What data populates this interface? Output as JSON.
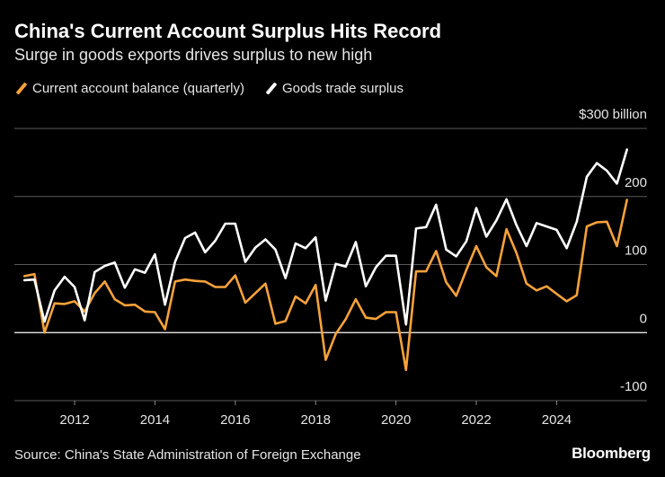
{
  "header": {
    "title": "China's Current Account Surplus Hits Record",
    "subtitle": "Surge in goods exports drives surplus to new high"
  },
  "footer": {
    "source": "Source: China's State Administration of Foreign Exchange",
    "brand": "Bloomberg"
  },
  "chart_data": {
    "type": "line",
    "title": "China's Current Account Surplus Hits Record",
    "subtitle": "Surge in goods exports drives surplus to new high",
    "xlabel": "",
    "ylabel": "$ billion",
    "xlim": [
      2010.5,
      2026.25
    ],
    "ylim": [
      -100,
      300
    ],
    "grid": true,
    "legend_position": "top-left",
    "x_ticks": [
      2012,
      2014,
      2016,
      2018,
      2020,
      2022,
      2024
    ],
    "x_tick_labels": [
      "2012",
      "2014",
      "2016",
      "2018",
      "2020",
      "2022",
      "2024"
    ],
    "y_ticks": [
      -100,
      0,
      100,
      200,
      300
    ],
    "y_tick_labels": [
      "-100",
      "0",
      "100",
      "200",
      "$300 billion"
    ],
    "x_start": 2010.75,
    "x_step": 0.25,
    "series": [
      {
        "name": "Current account balance (quarterly)",
        "color": "#f7a23a",
        "values": [
          83,
          86,
          0,
          43,
          42,
          46,
          31,
          58,
          75,
          49,
          40,
          41,
          31,
          30,
          5,
          75,
          78,
          76,
          75,
          67,
          67,
          84,
          44,
          58,
          72,
          13,
          17,
          53,
          43,
          70,
          -40,
          -2,
          20,
          49,
          22,
          20,
          30,
          30,
          -55,
          90,
          90,
          120,
          74,
          54,
          92,
          127,
          96,
          83,
          152,
          117,
          72,
          62,
          68,
          57,
          46,
          55,
          156,
          162,
          163,
          127,
          195
        ]
      },
      {
        "name": "Goods trade surplus",
        "color": "#ffffff",
        "values": [
          77,
          78,
          16,
          62,
          82,
          67,
          18,
          89,
          98,
          103,
          66,
          93,
          88,
          115,
          41,
          104,
          139,
          147,
          118,
          135,
          160,
          160,
          104,
          125,
          137,
          122,
          80,
          131,
          124,
          140,
          47,
          101,
          97,
          133,
          68,
          96,
          113,
          113,
          12,
          153,
          155,
          188,
          122,
          112,
          134,
          183,
          141,
          165,
          196,
          158,
          127,
          161,
          156,
          151,
          124,
          163,
          229,
          249,
          238,
          219,
          269
        ]
      }
    ]
  }
}
